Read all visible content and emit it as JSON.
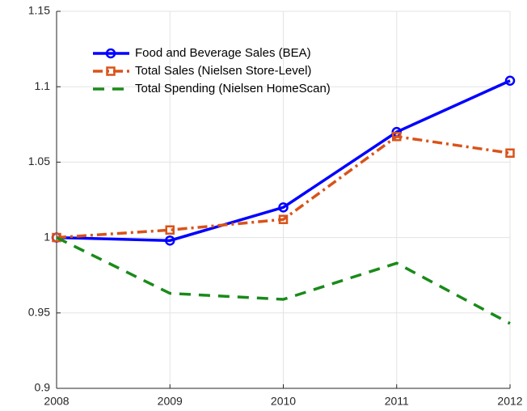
{
  "chart_data": {
    "type": "line",
    "x": [
      2008,
      2009,
      2010,
      2011,
      2012
    ],
    "series": [
      {
        "name": "Food and Beverage Sales (BEA)",
        "color": "#0000ff",
        "linestyle": "solid",
        "marker": "circle",
        "values": [
          1.0,
          0.998,
          1.02,
          1.07,
          1.104
        ]
      },
      {
        "name": "Total Sales (Nielsen Store-Level)",
        "color": "#d95319",
        "linestyle": "dashdot",
        "marker": "square",
        "values": [
          1.0,
          1.005,
          1.012,
          1.067,
          1.056
        ]
      },
      {
        "name": "Total Spending (Nielsen HomeScan)",
        "color": "#1a8a1a",
        "linestyle": "dashed",
        "marker": "none",
        "values": [
          1.0,
          0.963,
          0.959,
          0.983,
          0.943
        ]
      }
    ],
    "xlim": [
      2008,
      2012
    ],
    "xticks": [
      2008,
      2009,
      2010,
      2011,
      2012
    ],
    "ylim": [
      0.9,
      1.15
    ],
    "yticks": [
      0.9,
      0.95,
      1,
      1.05,
      1.1,
      1.15
    ],
    "grid": true,
    "legend": "upper left"
  }
}
